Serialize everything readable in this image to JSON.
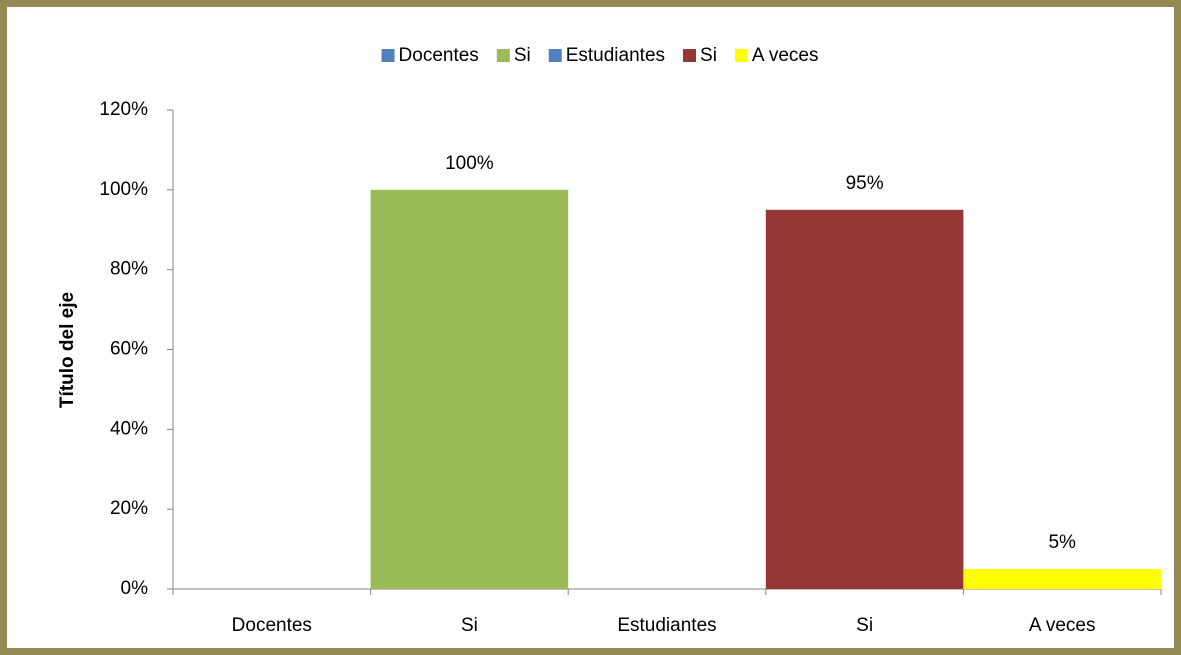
{
  "chart_data": {
    "type": "bar",
    "categories": [
      "Docentes",
      "Si",
      "Estudiantes",
      "Si",
      "A veces"
    ],
    "y_label": "Título del eje",
    "series": [
      {
        "name": "Docentes",
        "color": "#4f81bd",
        "values": [
          null,
          null,
          null,
          null,
          null
        ]
      },
      {
        "name": "Si",
        "color": "#9bbb59",
        "values": [
          null,
          100,
          null,
          null,
          null
        ],
        "value_labels": [
          null,
          "100%",
          null,
          null,
          null
        ]
      },
      {
        "name": "Estudiantes",
        "color": "#4f81bd",
        "values": [
          null,
          null,
          null,
          null,
          null
        ]
      },
      {
        "name": "Si",
        "color": "#953735",
        "values": [
          null,
          null,
          null,
          95,
          null
        ],
        "value_labels": [
          null,
          null,
          null,
          "95%",
          null
        ]
      },
      {
        "name": "A veces",
        "color": "#ffff00",
        "values": [
          null,
          null,
          null,
          null,
          5
        ],
        "value_labels": [
          null,
          null,
          null,
          null,
          "5%"
        ]
      }
    ],
    "ylim": [
      0,
      120
    ],
    "yticks": [
      {
        "value": 0,
        "label": "0%"
      },
      {
        "value": 20,
        "label": "20%"
      },
      {
        "value": 40,
        "label": "40%"
      },
      {
        "value": 60,
        "label": "60%"
      },
      {
        "value": 80,
        "label": "80%"
      },
      {
        "value": 100,
        "label": "100%"
      },
      {
        "value": 120,
        "label": "120%"
      }
    ],
    "legend": "top",
    "grid": false
  }
}
